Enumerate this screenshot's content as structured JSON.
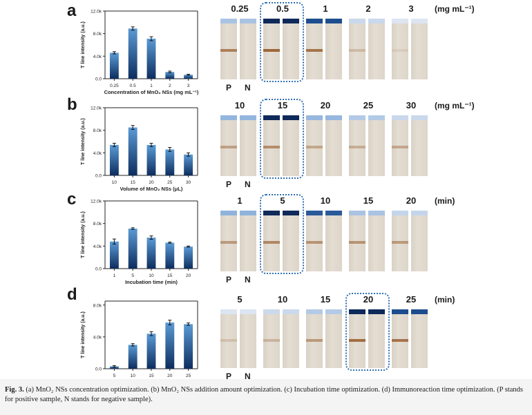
{
  "figure_label": "Fig. 3.",
  "caption_text": "(a) MnO₂ NSs concentration optimization. (b) MnO₂ NSs addition amount optimization. (c) Incubation time optimization. (d) Immunoreaction time optimization. (P stands for positive sample, N stands for negative sample).",
  "pn_labels": {
    "p": "P",
    "n": "N"
  },
  "colors": {
    "bar_top": "#5b9bd5",
    "bar_bottom": "#0d2d5e",
    "highlight": "#2f6fb4"
  },
  "panels": [
    {
      "letter": "a",
      "unit": "(mg mL⁻¹)",
      "strip_labels": [
        "0.25",
        "0.5",
        "1",
        "2",
        "3"
      ],
      "line_intensity": [
        0.7,
        0.9,
        0.8,
        0.25,
        0.1
      ],
      "cap_colors": [
        "#aac3e3",
        "#0f2a5a",
        "#1d4d8e",
        "#c9d8ec",
        "#dce5f1"
      ],
      "highlight_index": 1,
      "show_pn": true
    },
    {
      "letter": "b",
      "unit": "(mg mL⁻¹)",
      "strip_labels": [
        "10",
        "15",
        "20",
        "25",
        "30"
      ],
      "line_intensity": [
        0.45,
        0.6,
        0.4,
        0.35,
        0.4
      ],
      "cap_colors": [
        "#94b6de",
        "#0f2a5a",
        "#97b7de",
        "#b3cae6",
        "#c9d8ec"
      ],
      "highlight_index": 1,
      "show_pn": true
    },
    {
      "letter": "c",
      "unit": "(min)",
      "strip_labels": [
        "1",
        "5",
        "10",
        "15",
        "20"
      ],
      "line_intensity": [
        0.5,
        0.65,
        0.55,
        0.55,
        0.5
      ],
      "cap_colors": [
        "#90b3dc",
        "#0f2a5a",
        "#2a5a9a",
        "#aac3e3",
        "#c4d5eb"
      ],
      "highlight_index": 1,
      "show_pn": true
    },
    {
      "letter": "d",
      "unit": "(min)",
      "strip_labels": [
        "5",
        "10",
        "15",
        "20",
        "25"
      ],
      "line_intensity": [
        0.2,
        0.3,
        0.5,
        0.85,
        0.8
      ],
      "cap_colors": [
        "#dce5f1",
        "#cbd9ec",
        "#b3cae6",
        "#0f2a5a",
        "#1d4d8e"
      ],
      "highlight_index": 3,
      "show_pn": true
    }
  ],
  "chart_data": [
    {
      "type": "bar",
      "panel": "a",
      "categories": [
        "0.25",
        "0.5",
        "1",
        "2",
        "3"
      ],
      "values": [
        4.6,
        8.9,
        7.1,
        1.2,
        0.7
      ],
      "errors": [
        0.2,
        0.3,
        0.35,
        0.15,
        0.1
      ],
      "ylabel": "T line intensity (a.u.)",
      "xlabel": "Concentration of MnO₂ NSs (mg mL⁻¹)",
      "ylim": [
        0,
        12
      ],
      "yticks": [
        "0.0",
        "4.0k",
        "8.0k",
        "12.0k"
      ]
    },
    {
      "type": "bar",
      "panel": "b",
      "categories": [
        "10",
        "15",
        "20",
        "25",
        "30"
      ],
      "values": [
        5.4,
        8.5,
        5.4,
        4.6,
        3.7
      ],
      "errors": [
        0.3,
        0.35,
        0.3,
        0.35,
        0.3
      ],
      "ylabel": "T line intensity (a.u.)",
      "xlabel": "Volume of MnO₂ NSs (μL)",
      "ylim": [
        0,
        12
      ],
      "yticks": [
        "0.0",
        "4.0k",
        "8.0k",
        "12.0k"
      ]
    },
    {
      "type": "bar",
      "panel": "c",
      "categories": [
        "1",
        "5",
        "10",
        "15",
        "20"
      ],
      "values": [
        4.8,
        7.1,
        5.5,
        4.6,
        3.9
      ],
      "errors": [
        0.45,
        0.15,
        0.3,
        0.1,
        0.1
      ],
      "ylabel": "T line intensity (a.u.)",
      "xlabel": "Incubation time (min)",
      "ylim": [
        0,
        12
      ],
      "yticks": [
        "0.0",
        "4.0k",
        "8.0k",
        "12.0k"
      ]
    },
    {
      "type": "bar",
      "panel": "d",
      "categories": [
        "5",
        "10",
        "15",
        "20",
        "25"
      ],
      "values": [
        0.3,
        3.0,
        4.4,
        5.8,
        5.6
      ],
      "errors": [
        0.1,
        0.15,
        0.25,
        0.3,
        0.15
      ],
      "ylabel": "T line intensity (a.u.)",
      "xlabel": "Immunoreaction time (min)",
      "ylim": [
        0,
        8.5
      ],
      "yticks": [
        "0.0",
        "4.0k",
        "8.0k"
      ]
    }
  ]
}
